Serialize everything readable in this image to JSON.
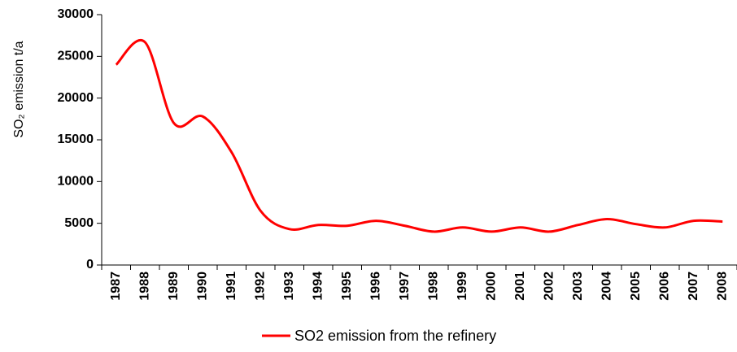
{
  "chart_data": {
    "type": "line",
    "ylabel": "SO₂ emission t/a",
    "categories": [
      "1987",
      "1988",
      "1989",
      "1990",
      "1991",
      "1992",
      "1993",
      "1994",
      "1995",
      "1996",
      "1997",
      "1998",
      "1999",
      "2000",
      "2001",
      "2002",
      "2003",
      "2004",
      "2005",
      "2006",
      "2007",
      "2008"
    ],
    "series": [
      {
        "name": "SO2 emission from the refinery",
        "color": "#ff0000",
        "values": [
          24000,
          26700,
          17000,
          17800,
          13500,
          6500,
          4300,
          4800,
          4700,
          5300,
          4700,
          4000,
          4500,
          4000,
          4500,
          4000,
          4800,
          5500,
          4900,
          4500,
          5300,
          5200
        ]
      }
    ],
    "ylim": [
      0,
      30000
    ],
    "yticks": [
      0,
      5000,
      10000,
      15000,
      20000,
      25000,
      30000
    ],
    "legend": "bottom"
  }
}
